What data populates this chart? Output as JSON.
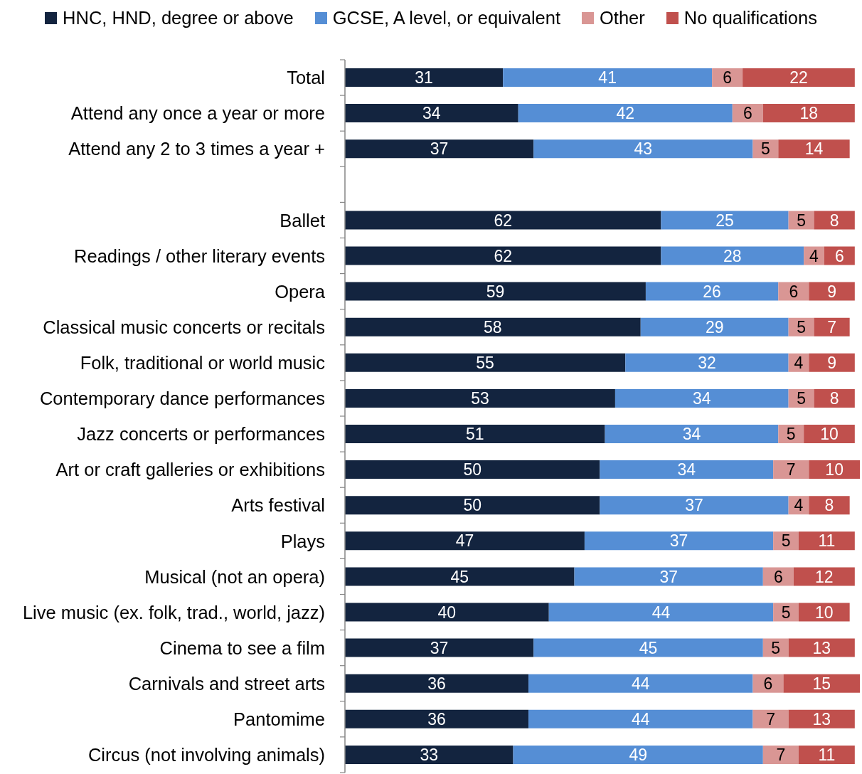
{
  "chart_data": {
    "type": "bar",
    "orientation": "horizontal",
    "stacked": true,
    "data_labels": true,
    "legend": "top",
    "tick_labels": "y",
    "categories": [
      "Total",
      "Attend any once a year or more",
      "Attend any 2 to 3 times a year +",
      null,
      "Ballet",
      "Readings / other literary events",
      "Opera",
      "Classical music concerts or recitals",
      "Folk, traditional or world music",
      "Contemporary dance performances",
      "Jazz concerts or performances",
      "Art or craft galleries or exhibitions",
      "Arts festival",
      "Plays",
      "Musical (not an opera)",
      "Live music (ex. folk, trad., world, jazz)",
      "Cinema to see a film",
      "Carnivals and street arts",
      "Pantomime",
      "Circus (not involving animals)"
    ],
    "series": [
      {
        "name": "HNC, HND, degree or above",
        "color": "#13243f",
        "values": [
          31,
          34,
          37,
          null,
          62,
          62,
          59,
          58,
          55,
          53,
          51,
          50,
          50,
          47,
          45,
          40,
          37,
          36,
          36,
          33
        ]
      },
      {
        "name": "GCSE, A level, or equivalent",
        "color": "#558ed5",
        "values": [
          41,
          42,
          43,
          null,
          25,
          28,
          26,
          29,
          32,
          34,
          34,
          34,
          37,
          37,
          37,
          44,
          45,
          44,
          44,
          49
        ]
      },
      {
        "name": "Other",
        "color": "#d99694",
        "values": [
          6,
          6,
          5,
          null,
          5,
          4,
          6,
          5,
          4,
          5,
          5,
          7,
          4,
          5,
          6,
          5,
          5,
          6,
          7,
          7
        ]
      },
      {
        "name": "No qualifications",
        "color": "#c0504d",
        "values": [
          22,
          18,
          14,
          null,
          8,
          6,
          9,
          7,
          9,
          8,
          10,
          10,
          8,
          11,
          12,
          10,
          13,
          15,
          13,
          11
        ]
      }
    ]
  }
}
